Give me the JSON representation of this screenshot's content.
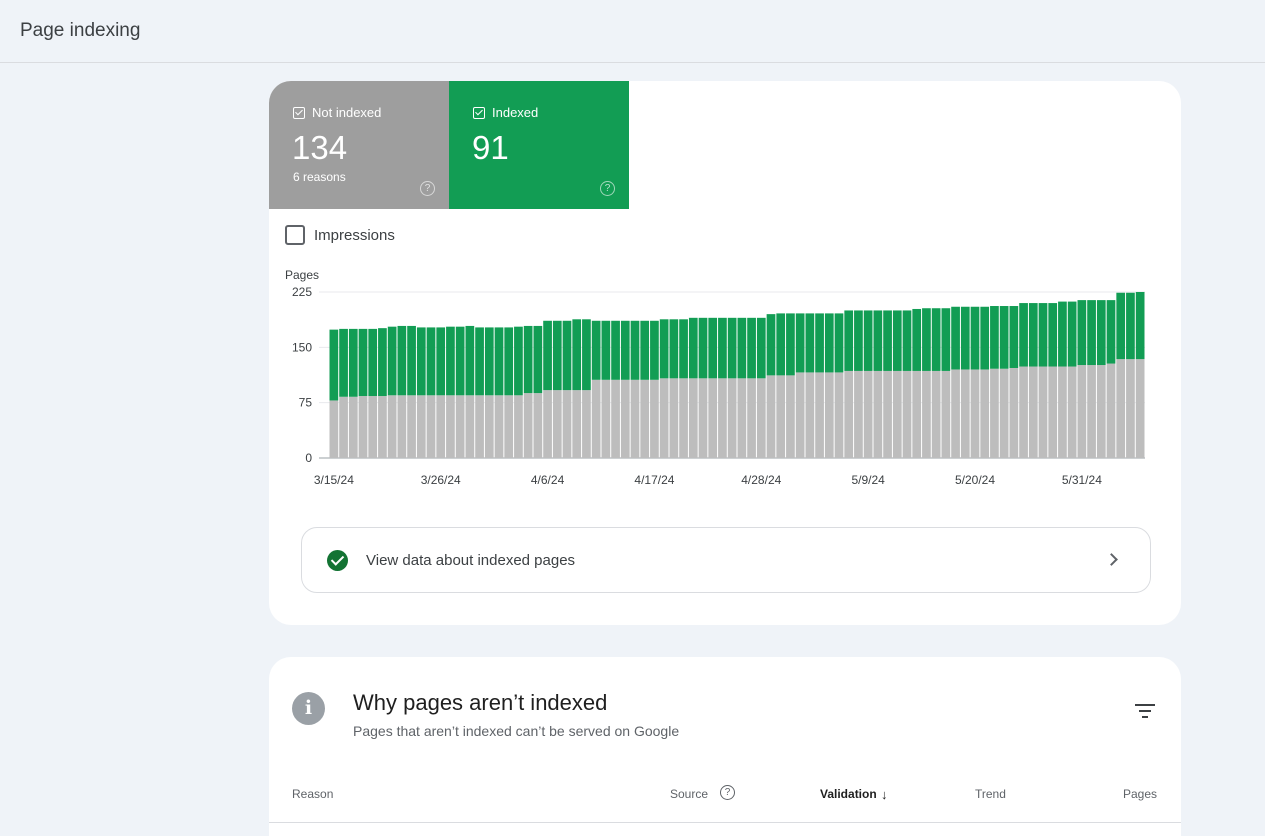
{
  "header": {
    "title": "Page indexing"
  },
  "summary": {
    "not_indexed": {
      "label": "Not indexed",
      "value": "134",
      "sub": "6 reasons",
      "help": "?",
      "color": "#9e9e9e"
    },
    "indexed": {
      "label": "Indexed",
      "value": "91",
      "help": "?",
      "color": "#129d54"
    }
  },
  "impressions": {
    "label": "Impressions",
    "checked": false
  },
  "chart_data": {
    "type": "bar",
    "stacked": true,
    "ylabel": "Pages",
    "ylim": [
      0,
      225
    ],
    "yticks": [
      "0",
      "75",
      "150",
      "225"
    ],
    "xtick_labels": [
      "3/15/24",
      "3/26/24",
      "4/6/24",
      "4/17/24",
      "4/28/24",
      "5/9/24",
      "5/20/24",
      "5/31/24"
    ],
    "xtick_every": 11,
    "grid": true,
    "series": [
      {
        "name": "Not indexed",
        "color": "#bdbdbd",
        "values": [
          78,
          83,
          83,
          84,
          84,
          84,
          85,
          85,
          85,
          85,
          85,
          85,
          85,
          85,
          85,
          85,
          85,
          85,
          85,
          85,
          88,
          88,
          92,
          92,
          92,
          92,
          92,
          106,
          106,
          106,
          106,
          106,
          106,
          106,
          108,
          108,
          108,
          108,
          108,
          108,
          108,
          108,
          108,
          108,
          108,
          112,
          112,
          112,
          116,
          116,
          116,
          116,
          116,
          118,
          118,
          118,
          118,
          118,
          118,
          118,
          118,
          118,
          118,
          118,
          120,
          120,
          120,
          120,
          121,
          121,
          122,
          124,
          124,
          124,
          124,
          124,
          124,
          126,
          126,
          126,
          128,
          134,
          134,
          134
        ]
      },
      {
        "name": "Indexed",
        "color": "#129d54",
        "values": [
          96,
          92,
          92,
          91,
          91,
          92,
          93,
          94,
          94,
          92,
          92,
          92,
          93,
          93,
          94,
          92,
          92,
          92,
          92,
          93,
          91,
          91,
          94,
          94,
          94,
          96,
          96,
          80,
          80,
          80,
          80,
          80,
          80,
          80,
          80,
          80,
          80,
          82,
          82,
          82,
          82,
          82,
          82,
          82,
          82,
          83,
          84,
          84,
          80,
          80,
          80,
          80,
          80,
          82,
          82,
          82,
          82,
          82,
          82,
          82,
          84,
          85,
          85,
          85,
          85,
          85,
          85,
          85,
          85,
          85,
          84,
          86,
          86,
          86,
          86,
          88,
          88,
          88,
          88,
          88,
          86,
          90,
          90,
          91
        ]
      }
    ]
  },
  "view_link": {
    "label": "View data about indexed pages"
  },
  "why_section": {
    "icon": "info-icon",
    "title": "Why pages aren’t indexed",
    "subtitle": "Pages that aren’t indexed can’t be served on Google",
    "columns": {
      "reason": "Reason",
      "source": "Source",
      "validation": "Validation",
      "trend": "Trend",
      "pages": "Pages"
    },
    "sort_arrow": "↓",
    "help": "?"
  }
}
